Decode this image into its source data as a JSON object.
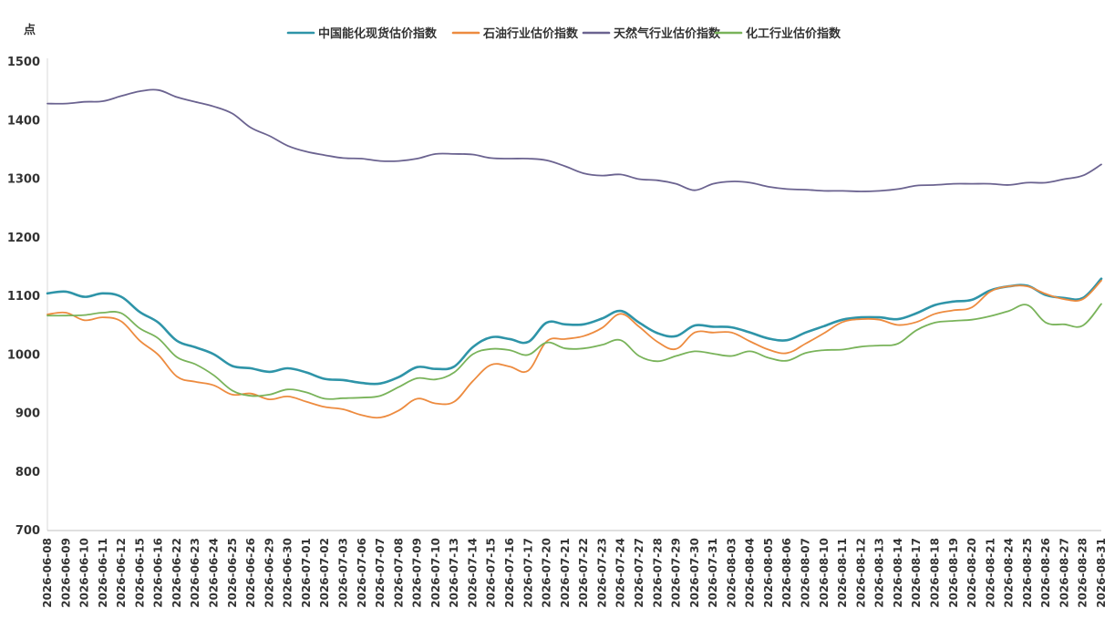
{
  "chart_data": {
    "type": "line",
    "ylabel": "点",
    "ylim": [
      700,
      1500
    ],
    "yticks": [
      700,
      800,
      900,
      1000,
      1100,
      1200,
      1300,
      1400,
      1500
    ],
    "legend_position": "top-center",
    "grid": false,
    "x": [
      "2026-06-08",
      "2026-06-09",
      "2026-06-10",
      "2026-06-11",
      "2026-06-12",
      "2026-06-15",
      "2026-06-16",
      "2026-06-22",
      "2026-06-23",
      "2026-06-24",
      "2026-06-25",
      "2026-06-26",
      "2026-06-29",
      "2026-06-30",
      "2026-07-01",
      "2026-07-02",
      "2026-07-03",
      "2026-07-06",
      "2026-07-07",
      "2026-07-08",
      "2026-07-09",
      "2026-07-10",
      "2026-07-13",
      "2026-07-14",
      "2026-07-15",
      "2026-07-16",
      "2026-07-17",
      "2026-07-20",
      "2026-07-21",
      "2026-07-22",
      "2026-07-23",
      "2026-07-24",
      "2026-07-27",
      "2026-07-28",
      "2026-07-29",
      "2026-07-30",
      "2026-07-31",
      "2026-08-03",
      "2026-08-04",
      "2026-08-05",
      "2026-08-06",
      "2026-08-07",
      "2026-08-10",
      "2026-08-11",
      "2026-08-12",
      "2026-08-13",
      "2026-08-14",
      "2026-08-17",
      "2026-08-18",
      "2026-08-19",
      "2026-08-20",
      "2026-08-21",
      "2026-08-24",
      "2026-08-25",
      "2026-08-26",
      "2026-08-27",
      "2026-08-28",
      "2026-08-31"
    ],
    "series": [
      {
        "name": "中国能化现货估价指数",
        "color": "#2E94A8",
        "values": [
          1105,
          1108,
          1099,
          1105,
          1099,
          1073,
          1055,
          1024,
          1013,
          1001,
          981,
          977,
          971,
          977,
          970,
          959,
          957,
          952,
          951,
          962,
          979,
          976,
          980,
          1013,
          1030,
          1027,
          1022,
          1055,
          1052,
          1052,
          1062,
          1075,
          1055,
          1037,
          1032,
          1050,
          1048,
          1047,
          1038,
          1028,
          1025,
          1038,
          1049,
          1060,
          1064,
          1064,
          1061,
          1071,
          1085,
          1091,
          1094,
          1110,
          1117,
          1118,
          1102,
          1097,
          1097,
          1130
        ]
      },
      {
        "name": "石油行业估价指数",
        "color": "#ED8B3F",
        "values": [
          1069,
          1072,
          1059,
          1064,
          1057,
          1024,
          1000,
          963,
          954,
          948,
          932,
          934,
          924,
          929,
          920,
          911,
          907,
          897,
          893,
          905,
          925,
          917,
          920,
          955,
          983,
          980,
          973,
          1023,
          1027,
          1032,
          1046,
          1070,
          1048,
          1022,
          1010,
          1038,
          1038,
          1038,
          1023,
          1009,
          1003,
          1019,
          1037,
          1056,
          1061,
          1060,
          1051,
          1056,
          1070,
          1076,
          1081,
          1108,
          1117,
          1117,
          1104,
          1095,
          1095,
          1127
        ]
      },
      {
        "name": "天然气行业估价指数",
        "color": "#6B6390",
        "values": [
          1429,
          1429,
          1432,
          1433,
          1442,
          1450,
          1452,
          1440,
          1432,
          1424,
          1412,
          1388,
          1374,
          1357,
          1347,
          1341,
          1336,
          1335,
          1331,
          1331,
          1335,
          1343,
          1343,
          1342,
          1336,
          1335,
          1335,
          1332,
          1322,
          1310,
          1306,
          1308,
          1300,
          1298,
          1292,
          1281,
          1292,
          1296,
          1294,
          1287,
          1283,
          1282,
          1280,
          1280,
          1279,
          1280,
          1283,
          1289,
          1290,
          1292,
          1292,
          1292,
          1290,
          1294,
          1294,
          1300,
          1306,
          1325
        ]
      },
      {
        "name": "化工行业估价指数",
        "color": "#79B35A",
        "values": [
          1067,
          1067,
          1068,
          1072,
          1071,
          1045,
          1028,
          996,
          984,
          965,
          939,
          930,
          932,
          941,
          936,
          925,
          926,
          927,
          930,
          945,
          960,
          958,
          970,
          1001,
          1010,
          1008,
          1000,
          1021,
          1011,
          1011,
          1017,
          1025,
          998,
          989,
          998,
          1006,
          1002,
          998,
          1006,
          995,
          990,
          1003,
          1008,
          1009,
          1014,
          1016,
          1019,
          1042,
          1055,
          1058,
          1060,
          1066,
          1075,
          1085,
          1055,
          1052,
          1050,
          1087
        ]
      }
    ]
  }
}
